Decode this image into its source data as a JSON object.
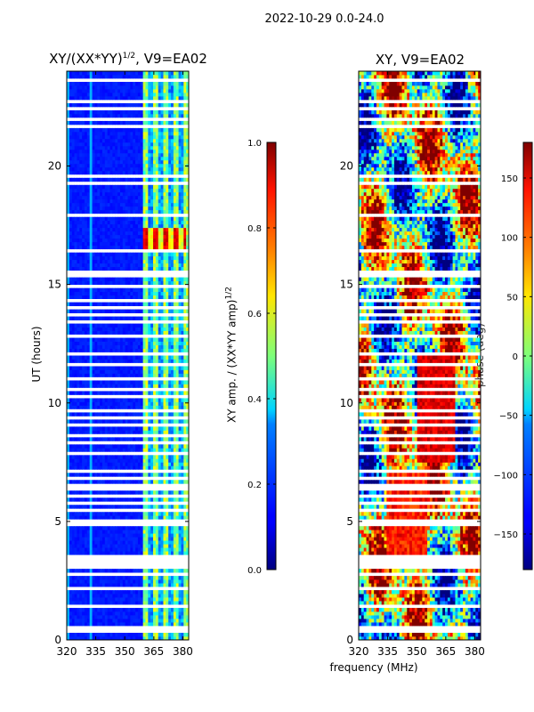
{
  "figure": {
    "suptitle": "2022-10-29 0.0-24.0",
    "xlabel": "frequency (MHz)",
    "ylabel": "UT (hours)"
  },
  "chart_data": [
    {
      "type": "heatmap",
      "title_base": "XY/(XX*YY)",
      "title_exp": "1/2",
      "title_suffix": ", V9=EA02",
      "x_ticks": [
        320,
        335,
        350,
        365,
        380
      ],
      "xlim": [
        320,
        383
      ],
      "y_ticks": [
        0,
        5,
        10,
        15,
        20
      ],
      "ylim": [
        0,
        24
      ],
      "colorbar": {
        "label_base": "XY amp. / (XX*YY amp)",
        "label_exp": "1/2",
        "range": [
          0.0,
          1.0
        ],
        "ticks": [
          "0.0",
          "0.2",
          "0.4",
          "0.6",
          "0.8",
          "1.0"
        ],
        "tick_values": [
          0.0,
          0.2,
          0.4,
          0.6,
          0.8,
          1.0
        ]
      },
      "bright_channel_region_MHz": [
        360,
        383
      ],
      "high_value_block": {
        "ut": [
          16.3,
          17.4
        ],
        "freq_MHz": [
          360,
          382
        ],
        "value": 0.85
      }
    },
    {
      "type": "heatmap",
      "title": "XY, V9=EA02",
      "x_ticks": [
        320,
        335,
        350,
        365,
        380
      ],
      "xlim": [
        320,
        383
      ],
      "y_ticks": [
        0,
        5,
        10,
        15,
        20
      ],
      "ylim": [
        0,
        24
      ],
      "colorbar": {
        "label": "phase (deg)",
        "range": [
          -180,
          180
        ],
        "ticks": [
          "−150",
          "−100",
          "−50",
          "0",
          "50",
          "100",
          "150"
        ],
        "tick_values": [
          -150,
          -100,
          -50,
          0,
          50,
          100,
          150
        ]
      }
    }
  ],
  "flagged_ut_hours": [
    0.15,
    0.35,
    0.5,
    1.45,
    2.15,
    2.25,
    2.55,
    2.8,
    3.05,
    3.25,
    3.35,
    3.5,
    4.05,
    4.5,
    4.9,
    5.05,
    5.25,
    5.45,
    5.75,
    6.05,
    6.35,
    6.55,
    6.85,
    7.1,
    7.5,
    7.85,
    8.3,
    8.65,
    9.05,
    9.35,
    9.7,
    10.3,
    10.6,
    11.05,
    11.6,
    11.85,
    12.05,
    12.45,
    12.85,
    13.2,
    13.4,
    13.7,
    14.0,
    14.3,
    14.55,
    14.95,
    15.35,
    15.55,
    15.75,
    16.05,
    16.2,
    16.45,
    17.55,
    17.9,
    18.3,
    18.75,
    18.9,
    19.25,
    19.6,
    20.1,
    21.3,
    21.7,
    21.95,
    22.2,
    22.45,
    22.75,
    22.95,
    23.25,
    23.65,
    23.85
  ]
}
